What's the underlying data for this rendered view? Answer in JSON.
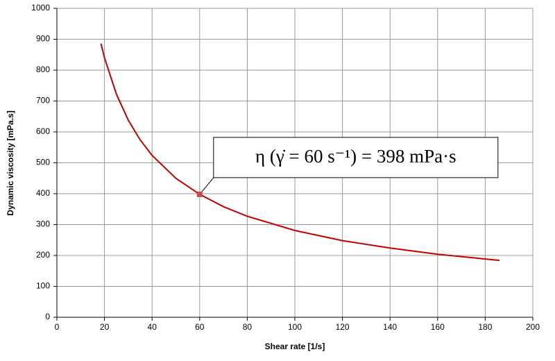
{
  "chart_data": {
    "type": "line",
    "x_label": "Shear rate [1/s]",
    "y_label": "Dynamic viscosity  [mPa.s]",
    "series": [
      {
        "name": "Dynamic viscosity",
        "color": "#c00000",
        "x": [
          18.5,
          20,
          25,
          30,
          35,
          40,
          50,
          60,
          70,
          80,
          100,
          120,
          140,
          160,
          186
        ],
        "values": [
          886,
          840,
          722,
          638,
          574,
          524,
          450,
          398,
          358,
          327,
          281,
          248,
          224,
          204,
          184
        ]
      }
    ],
    "highlight": {
      "x": 60,
      "y": 398,
      "color": "#c0504d"
    },
    "annotation": "η (γ̇ = 60 s⁻¹) = 398 mPa·s",
    "xlim": [
      0,
      200
    ],
    "xticks": [
      0,
      20,
      40,
      60,
      80,
      100,
      120,
      140,
      160,
      180,
      200
    ],
    "ylim": [
      0,
      1000
    ],
    "yticks": [
      0,
      100,
      200,
      300,
      400,
      500,
      600,
      700,
      800,
      900,
      1000
    ],
    "grid": true
  }
}
